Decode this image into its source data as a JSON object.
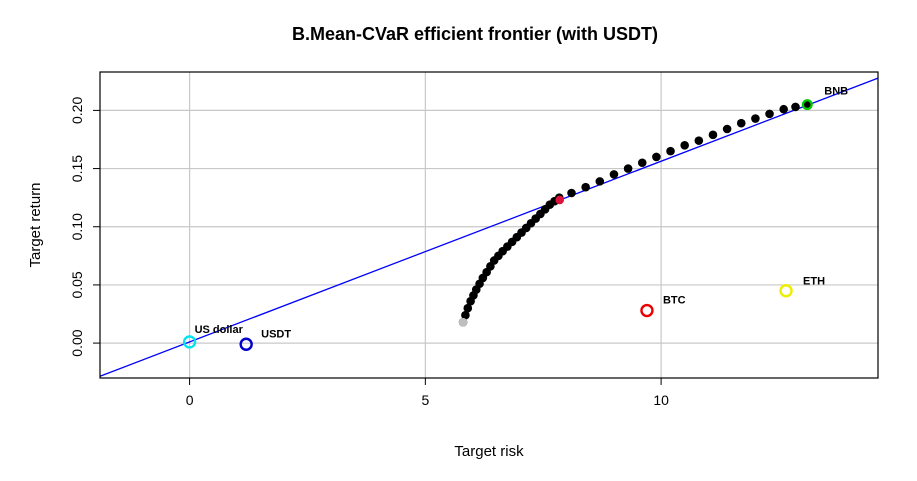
{
  "chart_data": {
    "type": "scatter",
    "title": "B.Mean-CVaR efficient frontier (with USDT)",
    "xlabel": "Target risk",
    "ylabel": "Target return",
    "xlim": [
      -1.9,
      14.6
    ],
    "ylim": [
      -0.03,
      0.233
    ],
    "xticks": [
      0,
      5,
      10
    ],
    "yticks": [
      0.0,
      0.05,
      0.1,
      0.15,
      0.2
    ],
    "xtick_labels": [
      "0",
      "5",
      "10"
    ],
    "ytick_labels": [
      "0.00",
      "0.05",
      "0.10",
      "0.15",
      "0.20"
    ],
    "grid": true,
    "frontier": {
      "color": "#000000",
      "x": [
        5.8,
        5.85,
        5.9,
        5.96,
        6.02,
        6.08,
        6.15,
        6.22,
        6.3,
        6.38,
        6.46,
        6.55,
        6.64,
        6.74,
        6.84,
        6.94,
        7.04,
        7.14,
        7.24,
        7.34,
        7.44,
        7.54,
        7.64,
        7.74,
        7.84,
        8.1,
        8.4,
        8.7,
        9.0,
        9.3,
        9.6,
        9.9,
        10.2,
        10.5,
        10.8,
        11.1,
        11.4,
        11.7,
        12.0,
        12.3,
        12.6,
        12.85,
        13.1
      ],
      "y": [
        0.018,
        0.024,
        0.03,
        0.036,
        0.041,
        0.046,
        0.051,
        0.056,
        0.061,
        0.066,
        0.071,
        0.075,
        0.079,
        0.083,
        0.087,
        0.091,
        0.095,
        0.099,
        0.103,
        0.107,
        0.111,
        0.115,
        0.119,
        0.122,
        0.125,
        0.129,
        0.134,
        0.139,
        0.145,
        0.15,
        0.155,
        0.16,
        0.165,
        0.17,
        0.174,
        0.179,
        0.184,
        0.189,
        0.193,
        0.197,
        0.201,
        0.203,
        0.205
      ]
    },
    "min_risk_point": {
      "x": 5.8,
      "y": 0.018,
      "color": "#bebebe"
    },
    "tangency_point": {
      "x": 7.85,
      "y": 0.123,
      "color": "#dc143c"
    },
    "capital_market_line": {
      "color": "#0000ff",
      "intercept": 0.001,
      "slope": 0.01553
    },
    "assets": [
      {
        "name": "US dollar",
        "x": 0.0,
        "y": 0.001,
        "color": "#00e5ee"
      },
      {
        "name": "USDT",
        "x": 1.2,
        "y": -0.001,
        "color": "#0000cd"
      },
      {
        "name": "BTC",
        "x": 9.7,
        "y": 0.028,
        "color": "#ee0000"
      },
      {
        "name": "ETH",
        "x": 12.65,
        "y": 0.045,
        "color": "#eeee00"
      },
      {
        "name": "BNB",
        "x": 13.1,
        "y": 0.205,
        "color": "#00cd00"
      }
    ]
  }
}
